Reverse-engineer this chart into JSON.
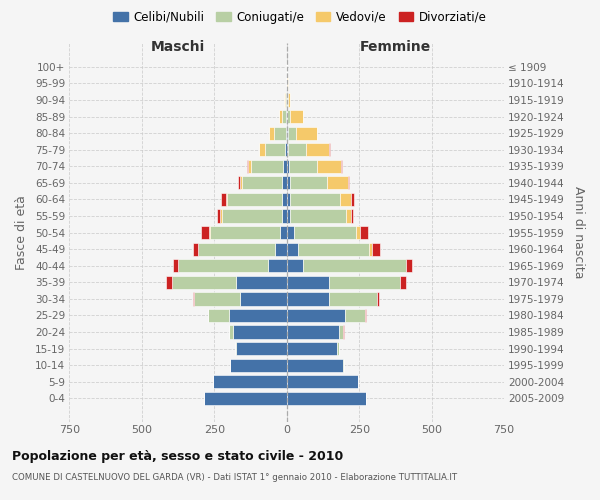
{
  "age_groups": [
    "100+",
    "95-99",
    "90-94",
    "85-89",
    "80-84",
    "75-79",
    "70-74",
    "65-69",
    "60-64",
    "55-59",
    "50-54",
    "45-49",
    "40-44",
    "35-39",
    "30-34",
    "25-29",
    "20-24",
    "15-19",
    "10-14",
    "5-9",
    "0-4"
  ],
  "birth_years": [
    "≤ 1909",
    "1910-1914",
    "1915-1919",
    "1920-1924",
    "1925-1929",
    "1930-1934",
    "1935-1939",
    "1940-1944",
    "1945-1949",
    "1950-1954",
    "1955-1959",
    "1960-1964",
    "1965-1969",
    "1970-1974",
    "1975-1979",
    "1980-1984",
    "1985-1989",
    "1990-1994",
    "1995-1999",
    "2000-2004",
    "2005-2009"
  ],
  "males_celibe": [
    0,
    1,
    2,
    3,
    4,
    5,
    12,
    15,
    15,
    15,
    25,
    40,
    65,
    175,
    160,
    200,
    185,
    175,
    195,
    255,
    285
  ],
  "males_coniugato": [
    1,
    2,
    4,
    15,
    40,
    70,
    110,
    140,
    190,
    210,
    240,
    265,
    310,
    220,
    160,
    70,
    15,
    4,
    2,
    1,
    0
  ],
  "males_vedovo": [
    0,
    0,
    3,
    8,
    18,
    20,
    12,
    8,
    4,
    4,
    2,
    2,
    1,
    0,
    0,
    0,
    0,
    0,
    0,
    0,
    0
  ],
  "males_divorziato": [
    0,
    0,
    0,
    0,
    0,
    2,
    4,
    4,
    18,
    13,
    28,
    18,
    18,
    20,
    5,
    2,
    0,
    0,
    0,
    0,
    0
  ],
  "females_nubile": [
    0,
    0,
    1,
    2,
    3,
    5,
    8,
    10,
    10,
    10,
    25,
    40,
    55,
    145,
    145,
    200,
    180,
    175,
    195,
    245,
    275
  ],
  "females_coniugata": [
    1,
    1,
    3,
    10,
    28,
    60,
    98,
    128,
    175,
    195,
    215,
    245,
    355,
    245,
    165,
    70,
    15,
    4,
    2,
    0,
    0
  ],
  "females_vedova": [
    0,
    2,
    8,
    45,
    72,
    82,
    82,
    72,
    35,
    16,
    12,
    8,
    3,
    2,
    2,
    0,
    0,
    0,
    0,
    0,
    0
  ],
  "females_divorziata": [
    0,
    0,
    0,
    0,
    0,
    2,
    4,
    4,
    13,
    8,
    28,
    28,
    18,
    18,
    7,
    4,
    2,
    0,
    0,
    0,
    0
  ],
  "color_celibe": "#4472a8",
  "color_coniugato": "#b8cfa4",
  "color_vedovo": "#f5c96a",
  "color_divorziato": "#cc2222",
  "legend_labels": [
    "Celibi/Nubili",
    "Coniugati/e",
    "Vedovi/e",
    "Divorziati/e"
  ],
  "title": "Popolazione per età, sesso e stato civile - 2010",
  "subtitle": "COMUNE DI CASTELNUOVO DEL GARDA (VR) - Dati ISTAT 1° gennaio 2010 - Elaborazione TUTTITALIA.IT",
  "label_maschi": "Maschi",
  "label_femmine": "Femmine",
  "ylabel_left": "Fasce di età",
  "ylabel_right": "Anni di nascita",
  "xlim": 750,
  "bg_color": "#f5f5f5",
  "plot_bg": "#f5f5f5",
  "grid_color": "#cccccc"
}
